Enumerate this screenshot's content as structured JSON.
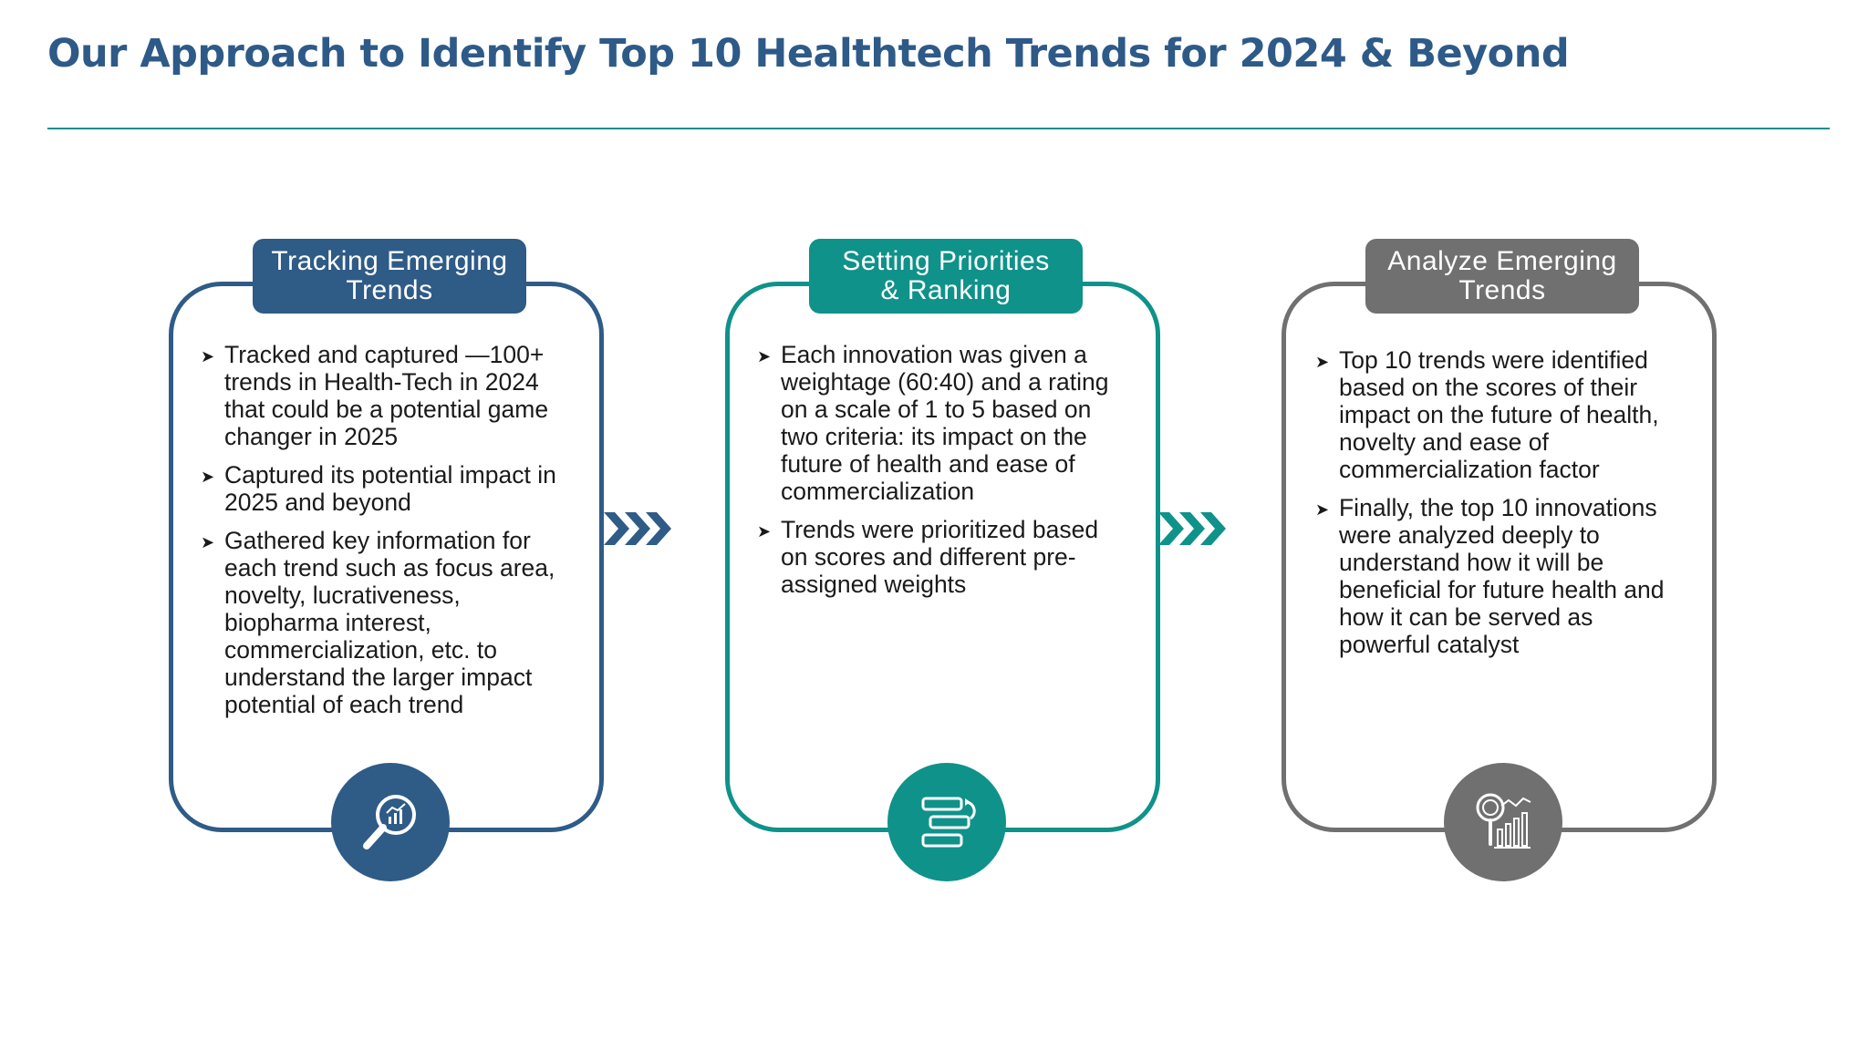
{
  "title": "Our Approach to Identify Top 10 Healthtech Trends for 2024 & Beyond",
  "colors": {
    "title": "#2e5a88",
    "rule": "#1f8e8e",
    "step1": "#2f5b87",
    "step2": "#0f928a",
    "step3": "#707070"
  },
  "steps": [
    {
      "heading_line1": "Tracking Emerging",
      "heading_line2": "Trends",
      "icon": "magnifier-chart-icon",
      "bullets": [
        "Tracked and captured —100+ trends in Health-Tech in 2024 that could be a potential game changer in 2025",
        "Captured its potential impact in 2025 and beyond",
        "Gathered key information for each trend such as focus area, novelty, lucrativeness, biopharma interest, commercialization, etc. to understand the larger impact potential of each trend"
      ]
    },
    {
      "heading_line1": "Setting Priorities",
      "heading_line2": "& Ranking",
      "icon": "ranking-bars-icon",
      "bullets": [
        "Each innovation was given a weightage (60:40) and a rating on a scale of 1 to 5 based on two criteria: its impact on the future of health and ease of commercialization",
        "Trends were prioritized based on scores and different pre-assigned weights"
      ]
    },
    {
      "heading_line1": "Analyze Emerging",
      "heading_line2": "Trends",
      "icon": "analysis-chart-icon",
      "bullets": [
        "Top 10 trends were identified based on the scores of their impact on the future of health, novelty and ease of commercialization factor",
        "Finally, the top 10 innovations were analyzed deeply to understand how it will be beneficial for future health and how it can be served as powerful catalyst"
      ]
    }
  ]
}
